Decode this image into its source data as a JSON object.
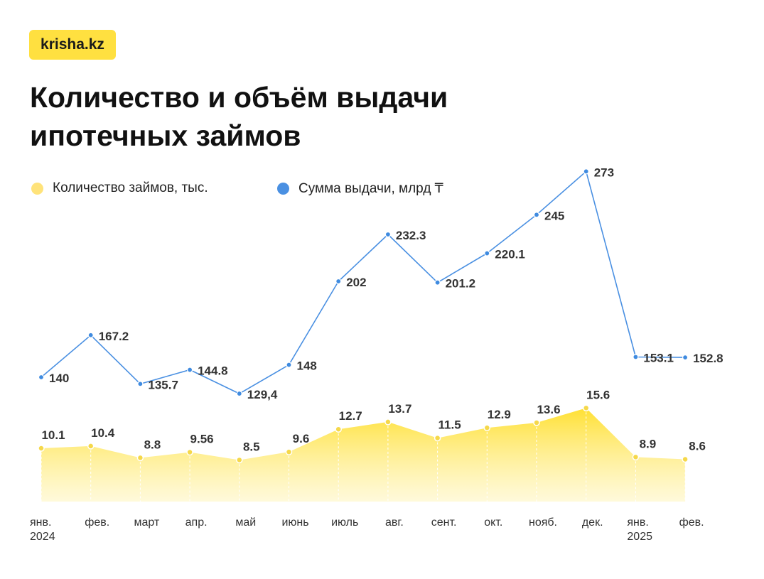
{
  "logo": {
    "text": "krisha.kz"
  },
  "title": {
    "line1": "Количество и объём выдачи",
    "line2": "ипотечных займов"
  },
  "colors": {
    "yellow": "#FFE040",
    "yellow_dot": "#F5D84A",
    "blue": "#4A90E2",
    "blue_dot": "#3F8BE0",
    "text": "#333333"
  },
  "chart_data": {
    "type": "line",
    "categories": [
      "янв.\n2024",
      "фев.",
      "март",
      "апр.",
      "май",
      "июнь",
      "июль",
      "авг.",
      "сент.",
      "окт.",
      "нояб.",
      "дек.",
      "янв.\n2025",
      "фев."
    ],
    "series": [
      {
        "name": "Сумма выдачи, млрд ₸",
        "values": [
          140,
          167.2,
          135.7,
          144.8,
          129.4,
          148,
          202,
          232.3,
          201.2,
          220.1,
          245,
          273,
          153.1,
          152.8
        ],
        "labels": [
          "140",
          "167.2",
          "135.7",
          "144.8",
          "129,4",
          "148",
          "202",
          "232.3",
          "201.2",
          "220.1",
          "245",
          "273",
          "153.1",
          "152.8"
        ]
      },
      {
        "name": "Количество займов, тыс.",
        "type": "area",
        "values": [
          10.1,
          10.4,
          8.8,
          9.56,
          8.5,
          9.6,
          12.7,
          13.7,
          11.5,
          12.9,
          13.6,
          15.6,
          8.9,
          8.6
        ],
        "labels": [
          "10.1",
          "10.4",
          "8.8",
          "9.56",
          "8.5",
          "9.6",
          "12.7",
          "13.7",
          "11.5",
          "12.9",
          "13.6",
          "15.6",
          "8.9",
          "8.6"
        ]
      }
    ],
    "legend_position": "top-left",
    "grid": false
  }
}
